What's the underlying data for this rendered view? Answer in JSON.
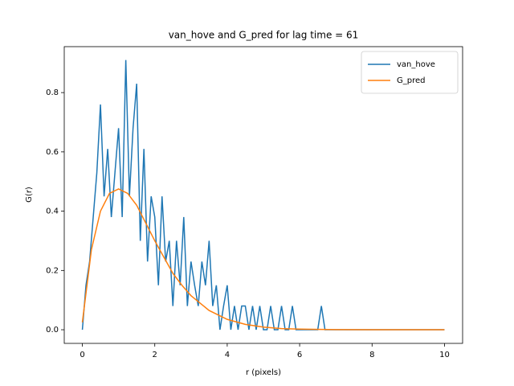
{
  "chart_data": {
    "type": "line",
    "title": "van_hove and G_pred for lag time = 61",
    "x_label": "r (pixels)",
    "y_label": "G(r)",
    "xlim": [
      -0.5,
      10.5
    ],
    "ylim": [
      -0.046,
      0.955
    ],
    "xticks": [
      0,
      2,
      4,
      6,
      8,
      10
    ],
    "yticks": [
      {
        "value": 0,
        "label": "0.0"
      },
      0.2,
      0.4,
      0.6,
      0.8
    ],
    "legend": "upper right",
    "series": [
      {
        "name": "van_hove",
        "color": "#1f77b4",
        "x": [
          0,
          0.1,
          0.2,
          0.3,
          0.4,
          0.5,
          0.6,
          0.7,
          0.8,
          0.9,
          1.0,
          1.1,
          1.2,
          1.3,
          1.4,
          1.5,
          1.6,
          1.7,
          1.8,
          1.9,
          2.0,
          2.1,
          2.2,
          2.3,
          2.4,
          2.5,
          2.6,
          2.7,
          2.8,
          2.9,
          3.0,
          3.1,
          3.2,
          3.3,
          3.4,
          3.5,
          3.6,
          3.7,
          3.8,
          3.9,
          4.0,
          4.1,
          4.2,
          4.3,
          4.4,
          4.5,
          4.6,
          4.7,
          4.8,
          4.9,
          5.0,
          5.1,
          5.2,
          5.3,
          5.4,
          5.5,
          5.6,
          5.7,
          5.8,
          5.9,
          6.0,
          6.5,
          6.6,
          6.7,
          8,
          10
        ],
        "values": [
          0,
          0.15,
          0.23,
          0.38,
          0.53,
          0.76,
          0.45,
          0.61,
          0.38,
          0.53,
          0.68,
          0.38,
          0.91,
          0.45,
          0.68,
          0.83,
          0.3,
          0.61,
          0.23,
          0.45,
          0.38,
          0.15,
          0.45,
          0.23,
          0.3,
          0.08,
          0.3,
          0.15,
          0.38,
          0.08,
          0.23,
          0.15,
          0.08,
          0.23,
          0.15,
          0.3,
          0.08,
          0.15,
          0,
          0.08,
          0.15,
          0,
          0.08,
          0,
          0.08,
          0.08,
          0,
          0.08,
          0,
          0.08,
          0,
          0,
          0.08,
          0,
          0,
          0.08,
          0,
          0,
          0.08,
          0,
          0,
          0,
          0.08,
          0,
          0,
          0
        ]
      },
      {
        "name": "G_pred",
        "color": "#ff7f0e",
        "x": [
          0,
          0.25,
          0.5,
          0.75,
          1.0,
          1.25,
          1.5,
          1.75,
          2.0,
          2.25,
          2.5,
          2.75,
          3.0,
          3.5,
          4.0,
          4.5,
          5.0,
          5.5,
          6,
          7,
          8,
          9,
          10
        ],
        "values": [
          0.025,
          0.27,
          0.4,
          0.46,
          0.475,
          0.46,
          0.42,
          0.36,
          0.3,
          0.245,
          0.19,
          0.15,
          0.115,
          0.065,
          0.035,
          0.018,
          0.009,
          0.004,
          0.002,
          0.0005,
          0.0001,
          0,
          0
        ]
      }
    ]
  }
}
